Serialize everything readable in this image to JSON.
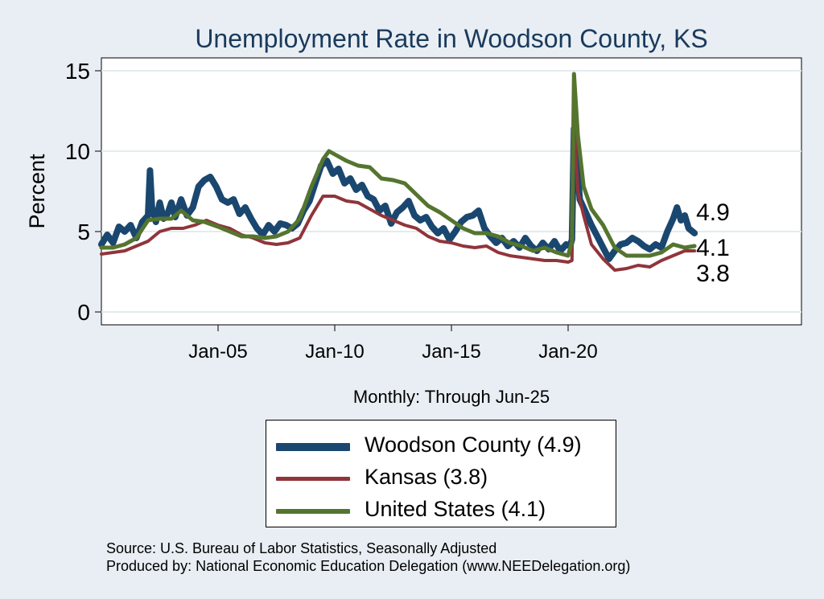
{
  "chart_data": {
    "type": "line",
    "title": "Unemployment Rate in Woodson  County, KS",
    "xlabel": "Monthly: Through Jun-25",
    "ylabel": "Percent",
    "ylim": [
      0,
      15.5
    ],
    "xlim": [
      "2000-01",
      "2030-01"
    ],
    "yticks": [
      0,
      5,
      10,
      15
    ],
    "xticks": [
      {
        "date": "2005-01",
        "label": "Jan-05"
      },
      {
        "date": "2010-01",
        "label": "Jan-10"
      },
      {
        "date": "2015-01",
        "label": "Jan-15"
      },
      {
        "date": "2020-01",
        "label": "Jan-20"
      }
    ],
    "grid": true,
    "legend_position": "bottom",
    "series": [
      {
        "name": "Woodson  County (4.9)",
        "color": "#1a476f",
        "end_label": "4.9",
        "points": [
          [
            "2000-01",
            4.2
          ],
          [
            "2000-04",
            4.8
          ],
          [
            "2000-07",
            4.3
          ],
          [
            "2000-10",
            5.3
          ],
          [
            "2001-01",
            5.0
          ],
          [
            "2001-04",
            5.4
          ],
          [
            "2001-07",
            4.6
          ],
          [
            "2001-10",
            5.6
          ],
          [
            "2002-01",
            6.0
          ],
          [
            "2002-02",
            8.8
          ],
          [
            "2002-03",
            6.5
          ],
          [
            "2002-05",
            5.6
          ],
          [
            "2002-07",
            6.8
          ],
          [
            "2002-09",
            5.8
          ],
          [
            "2002-11",
            6.1
          ],
          [
            "2003-01",
            6.8
          ],
          [
            "2003-03",
            5.9
          ],
          [
            "2003-06",
            7.0
          ],
          [
            "2003-09",
            6.0
          ],
          [
            "2003-12",
            6.5
          ],
          [
            "2004-03",
            7.8
          ],
          [
            "2004-06",
            8.2
          ],
          [
            "2004-09",
            8.4
          ],
          [
            "2004-12",
            7.8
          ],
          [
            "2005-03",
            7.0
          ],
          [
            "2005-06",
            6.8
          ],
          [
            "2005-09",
            7.0
          ],
          [
            "2005-12",
            6.1
          ],
          [
            "2006-03",
            6.5
          ],
          [
            "2006-06",
            5.8
          ],
          [
            "2006-09",
            5.2
          ],
          [
            "2006-12",
            4.8
          ],
          [
            "2007-03",
            5.4
          ],
          [
            "2007-06",
            5.0
          ],
          [
            "2007-09",
            5.5
          ],
          [
            "2007-12",
            5.4
          ],
          [
            "2008-03",
            5.2
          ],
          [
            "2008-06",
            5.5
          ],
          [
            "2008-09",
            6.3
          ],
          [
            "2008-12",
            6.9
          ],
          [
            "2009-03",
            8.0
          ],
          [
            "2009-06",
            9.1
          ],
          [
            "2009-09",
            9.4
          ],
          [
            "2009-12",
            8.6
          ],
          [
            "2010-03",
            8.9
          ],
          [
            "2010-06",
            8.0
          ],
          [
            "2010-09",
            8.3
          ],
          [
            "2010-12",
            7.6
          ],
          [
            "2011-03",
            7.9
          ],
          [
            "2011-06",
            7.2
          ],
          [
            "2011-09",
            7.0
          ],
          [
            "2011-12",
            6.3
          ],
          [
            "2012-03",
            6.6
          ],
          [
            "2012-06",
            5.5
          ],
          [
            "2012-09",
            6.2
          ],
          [
            "2012-12",
            6.5
          ],
          [
            "2013-03",
            6.9
          ],
          [
            "2013-06",
            6.0
          ],
          [
            "2013-09",
            5.7
          ],
          [
            "2013-12",
            5.9
          ],
          [
            "2014-03",
            5.3
          ],
          [
            "2014-06",
            4.9
          ],
          [
            "2014-09",
            5.2
          ],
          [
            "2014-12",
            4.5
          ],
          [
            "2015-03",
            5.0
          ],
          [
            "2015-06",
            5.6
          ],
          [
            "2015-09",
            5.9
          ],
          [
            "2015-12",
            6.0
          ],
          [
            "2016-03",
            6.3
          ],
          [
            "2016-06",
            5.2
          ],
          [
            "2016-09",
            4.7
          ],
          [
            "2016-12",
            4.3
          ],
          [
            "2017-03",
            4.6
          ],
          [
            "2017-06",
            4.1
          ],
          [
            "2017-09",
            4.4
          ],
          [
            "2017-12",
            4.0
          ],
          [
            "2018-03",
            4.6
          ],
          [
            "2018-06",
            4.1
          ],
          [
            "2018-09",
            3.8
          ],
          [
            "2018-12",
            4.3
          ],
          [
            "2019-03",
            3.9
          ],
          [
            "2019-06",
            4.4
          ],
          [
            "2019-09",
            3.8
          ],
          [
            "2019-12",
            4.2
          ],
          [
            "2020-02",
            4.1
          ],
          [
            "2020-03",
            4.5
          ],
          [
            "2020-04",
            11.4
          ],
          [
            "2020-05",
            10.2
          ],
          [
            "2020-07",
            7.0
          ],
          [
            "2020-10",
            6.2
          ],
          [
            "2021-01",
            5.4
          ],
          [
            "2021-04",
            4.7
          ],
          [
            "2021-07",
            4.0
          ],
          [
            "2021-10",
            3.3
          ],
          [
            "2022-01",
            3.8
          ],
          [
            "2022-04",
            4.2
          ],
          [
            "2022-07",
            4.3
          ],
          [
            "2022-10",
            4.6
          ],
          [
            "2023-01",
            4.4
          ],
          [
            "2023-04",
            4.1
          ],
          [
            "2023-07",
            3.9
          ],
          [
            "2023-10",
            4.2
          ],
          [
            "2024-01",
            4.0
          ],
          [
            "2024-04",
            5.0
          ],
          [
            "2024-07",
            5.8
          ],
          [
            "2024-09",
            6.5
          ],
          [
            "2024-11",
            5.7
          ],
          [
            "2025-01",
            6.0
          ],
          [
            "2025-03",
            5.2
          ],
          [
            "2025-06",
            4.9
          ]
        ]
      },
      {
        "name": "Kansas (3.8)",
        "color": "#90353b",
        "end_label": "3.8",
        "points": [
          [
            "2000-01",
            3.6
          ],
          [
            "2000-07",
            3.7
          ],
          [
            "2001-01",
            3.8
          ],
          [
            "2001-07",
            4.1
          ],
          [
            "2002-01",
            4.4
          ],
          [
            "2002-07",
            5.0
          ],
          [
            "2003-01",
            5.2
          ],
          [
            "2003-07",
            5.2
          ],
          [
            "2004-01",
            5.4
          ],
          [
            "2004-07",
            5.7
          ],
          [
            "2005-01",
            5.4
          ],
          [
            "2005-07",
            5.2
          ],
          [
            "2006-01",
            4.8
          ],
          [
            "2006-07",
            4.6
          ],
          [
            "2007-01",
            4.3
          ],
          [
            "2007-07",
            4.2
          ],
          [
            "2008-01",
            4.3
          ],
          [
            "2008-07",
            4.6
          ],
          [
            "2009-01",
            6.0
          ],
          [
            "2009-07",
            7.2
          ],
          [
            "2010-01",
            7.2
          ],
          [
            "2010-07",
            6.9
          ],
          [
            "2011-01",
            6.8
          ],
          [
            "2011-07",
            6.4
          ],
          [
            "2012-01",
            6.0
          ],
          [
            "2012-07",
            5.7
          ],
          [
            "2013-01",
            5.4
          ],
          [
            "2013-07",
            5.2
          ],
          [
            "2014-01",
            4.7
          ],
          [
            "2014-07",
            4.4
          ],
          [
            "2015-01",
            4.3
          ],
          [
            "2015-07",
            4.1
          ],
          [
            "2016-01",
            4.0
          ],
          [
            "2016-07",
            4.1
          ],
          [
            "2017-01",
            3.7
          ],
          [
            "2017-07",
            3.5
          ],
          [
            "2018-01",
            3.4
          ],
          [
            "2018-07",
            3.3
          ],
          [
            "2019-01",
            3.2
          ],
          [
            "2019-07",
            3.2
          ],
          [
            "2020-01",
            3.1
          ],
          [
            "2020-03",
            3.2
          ],
          [
            "2020-04",
            11.8
          ],
          [
            "2020-06",
            7.5
          ],
          [
            "2020-09",
            6.0
          ],
          [
            "2021-01",
            4.2
          ],
          [
            "2021-07",
            3.3
          ],
          [
            "2022-01",
            2.6
          ],
          [
            "2022-07",
            2.7
          ],
          [
            "2023-01",
            2.9
          ],
          [
            "2023-07",
            2.8
          ],
          [
            "2024-01",
            3.2
          ],
          [
            "2024-07",
            3.5
          ],
          [
            "2025-01",
            3.8
          ],
          [
            "2025-06",
            3.8
          ]
        ]
      },
      {
        "name": "United States (4.1)",
        "color": "#55752f",
        "end_label": "4.1",
        "points": [
          [
            "2000-01",
            4.0
          ],
          [
            "2000-07",
            4.0
          ],
          [
            "2001-01",
            4.2
          ],
          [
            "2001-07",
            4.6
          ],
          [
            "2002-01",
            5.7
          ],
          [
            "2002-07",
            5.8
          ],
          [
            "2003-01",
            5.8
          ],
          [
            "2003-06",
            6.3
          ],
          [
            "2003-12",
            5.7
          ],
          [
            "2004-06",
            5.6
          ],
          [
            "2005-01",
            5.3
          ],
          [
            "2005-07",
            5.0
          ],
          [
            "2006-01",
            4.7
          ],
          [
            "2006-07",
            4.7
          ],
          [
            "2007-01",
            4.6
          ],
          [
            "2007-07",
            4.7
          ],
          [
            "2008-01",
            5.0
          ],
          [
            "2008-07",
            5.8
          ],
          [
            "2009-01",
            7.8
          ],
          [
            "2009-07",
            9.5
          ],
          [
            "2009-10",
            10.0
          ],
          [
            "2010-01",
            9.8
          ],
          [
            "2010-07",
            9.4
          ],
          [
            "2011-01",
            9.1
          ],
          [
            "2011-07",
            9.0
          ],
          [
            "2012-01",
            8.3
          ],
          [
            "2012-07",
            8.2
          ],
          [
            "2013-01",
            8.0
          ],
          [
            "2013-07",
            7.3
          ],
          [
            "2014-01",
            6.6
          ],
          [
            "2014-07",
            6.2
          ],
          [
            "2015-01",
            5.7
          ],
          [
            "2015-07",
            5.2
          ],
          [
            "2016-01",
            4.9
          ],
          [
            "2016-07",
            4.9
          ],
          [
            "2017-01",
            4.7
          ],
          [
            "2017-07",
            4.3
          ],
          [
            "2018-01",
            4.1
          ],
          [
            "2018-07",
            3.8
          ],
          [
            "2019-01",
            4.0
          ],
          [
            "2019-07",
            3.7
          ],
          [
            "2020-01",
            3.5
          ],
          [
            "2020-03",
            4.4
          ],
          [
            "2020-04",
            14.8
          ],
          [
            "2020-06",
            11.0
          ],
          [
            "2020-09",
            7.8
          ],
          [
            "2021-01",
            6.4
          ],
          [
            "2021-07",
            5.4
          ],
          [
            "2022-01",
            4.0
          ],
          [
            "2022-07",
            3.5
          ],
          [
            "2023-01",
            3.5
          ],
          [
            "2023-07",
            3.5
          ],
          [
            "2024-01",
            3.7
          ],
          [
            "2024-07",
            4.2
          ],
          [
            "2025-01",
            4.0
          ],
          [
            "2025-06",
            4.1
          ]
        ]
      }
    ]
  },
  "footer": {
    "source": "Source: U.S. Bureau of Labor Statistics, Seasonally Adjusted",
    "producer": "Produced by: National Economic Education Delegation (www.NEEDelegation.org)"
  }
}
